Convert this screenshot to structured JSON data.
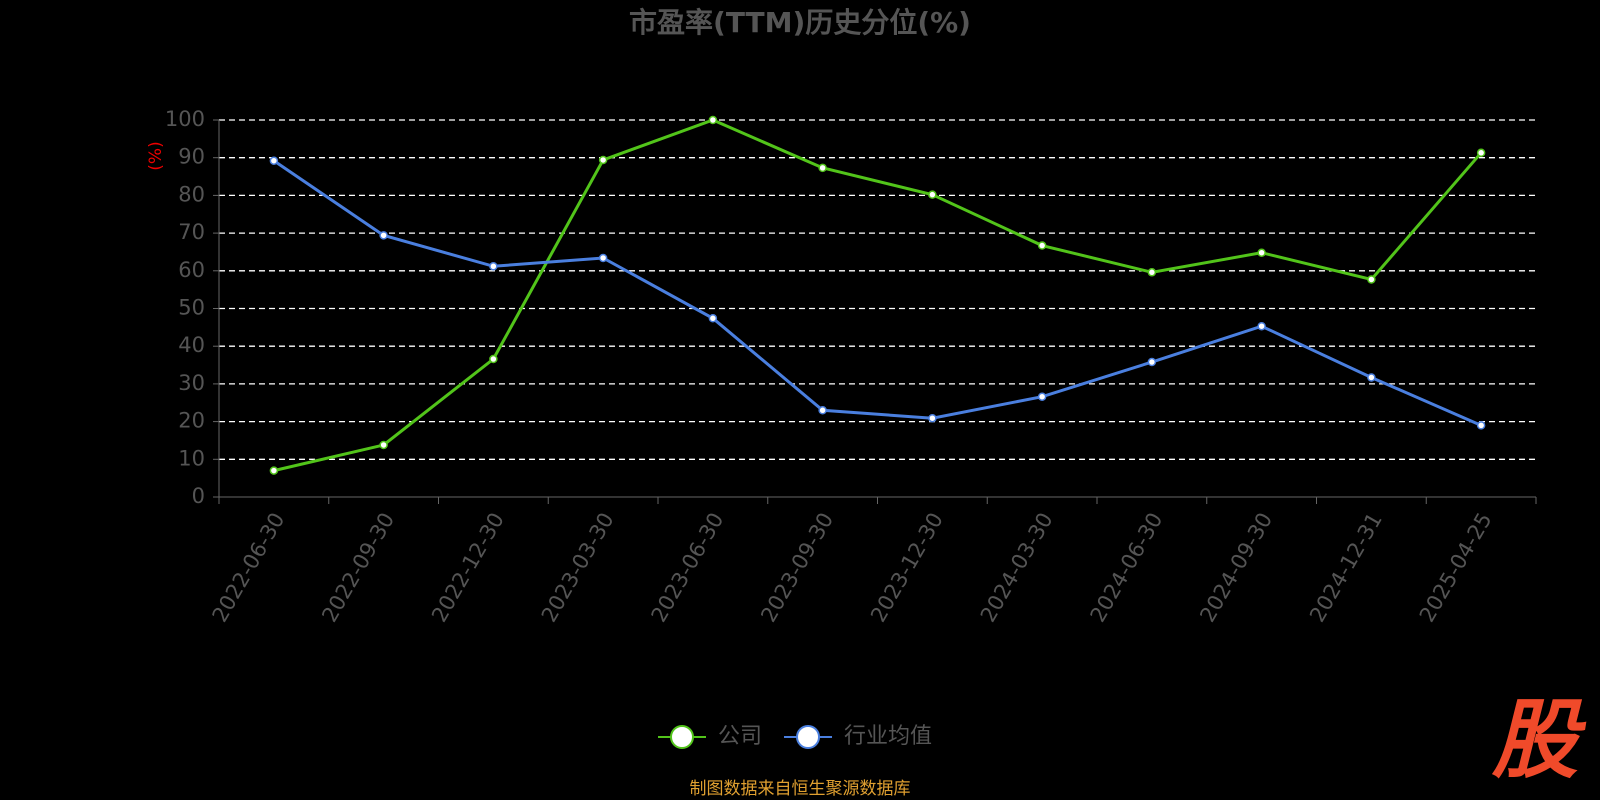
{
  "chart_data": {
    "type": "line",
    "title": "市盈率(TTM)历史分位(%)",
    "y_label": "(%)",
    "categories": [
      "2022-06-30",
      "2022-09-30",
      "2022-12-30",
      "2023-03-30",
      "2023-06-30",
      "2023-09-30",
      "2023-12-30",
      "2024-03-30",
      "2024-06-30",
      "2024-09-30",
      "2024-12-31",
      "2025-04-25"
    ],
    "series": [
      {
        "name": "公司",
        "color": "#52c41a",
        "values": [
          7,
          13.8,
          36.6,
          89.4,
          100,
          87.3,
          80.2,
          66.7,
          59.6,
          64.8,
          57.7,
          91.3
        ]
      },
      {
        "name": "行业均值",
        "color": "#4a7fdf",
        "values": [
          89.2,
          69.4,
          61.2,
          63.4,
          47.4,
          23,
          20.9,
          26.6,
          35.8,
          45.3,
          31.7,
          19
        ]
      }
    ],
    "ylim": [
      0,
      100
    ],
    "yticks": [
      0,
      10,
      20,
      30,
      40,
      50,
      60,
      70,
      80,
      90,
      100
    ],
    "grid": true,
    "legend": "bottom",
    "source": "制图数据来自恒生聚源数据库",
    "logo": "股"
  }
}
